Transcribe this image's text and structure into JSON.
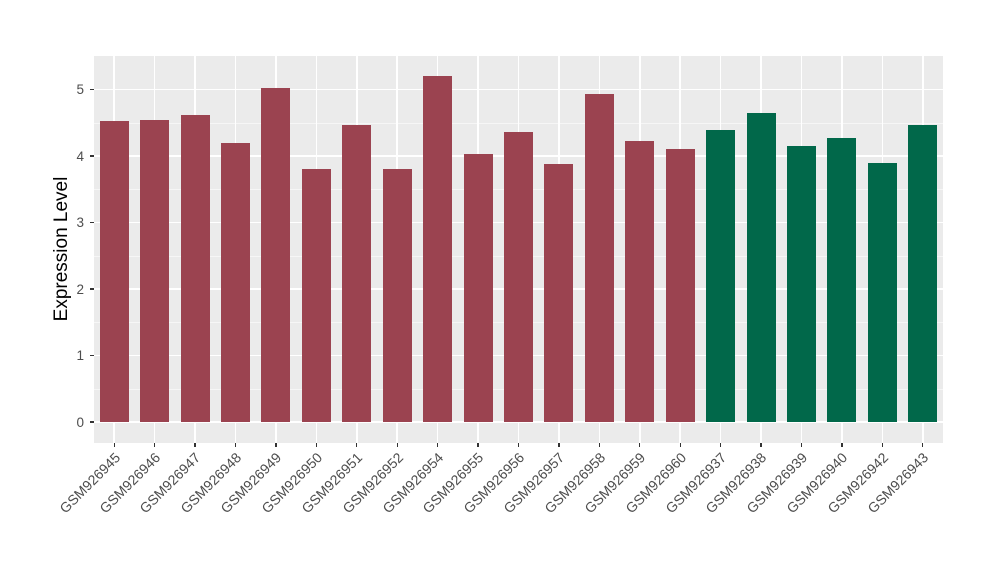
{
  "chart_data": {
    "type": "bar",
    "title": "",
    "xlabel": "",
    "ylabel": "Expression Level",
    "ylim": [
      0,
      5.5
    ],
    "yticks": [
      0,
      1,
      2,
      3,
      4,
      5
    ],
    "grid": "major and minor horizontal white gridlines, vertical white gridlines at each category",
    "legend_position": "none",
    "panel_background": "#EBEBEB",
    "gridline_major_color": "#FFFFFF",
    "tick_color": "#333333",
    "tick_label_color": "#4D4D4D",
    "categories": [
      "GSM926945",
      "GSM926946",
      "GSM926947",
      "GSM926948",
      "GSM926949",
      "GSM926950",
      "GSM926951",
      "GSM926952",
      "GSM926954",
      "GSM926955",
      "GSM926956",
      "GSM926957",
      "GSM926958",
      "GSM926959",
      "GSM926960",
      "GSM926937",
      "GSM926938",
      "GSM926939",
      "GSM926940",
      "GSM926942",
      "GSM926943"
    ],
    "values": [
      4.52,
      4.54,
      4.62,
      4.2,
      5.03,
      3.8,
      4.47,
      3.81,
      5.21,
      4.03,
      4.36,
      3.88,
      4.93,
      4.22,
      4.11,
      4.39,
      4.64,
      4.15,
      4.27,
      3.9,
      4.46
    ],
    "bar_groups": [
      "group1",
      "group1",
      "group1",
      "group1",
      "group1",
      "group1",
      "group1",
      "group1",
      "group1",
      "group1",
      "group1",
      "group1",
      "group1",
      "group1",
      "group1",
      "group2",
      "group2",
      "group2",
      "group2",
      "group2",
      "group2"
    ],
    "group_colors": {
      "group1": "#9B4350",
      "group2": "#01684A"
    }
  }
}
